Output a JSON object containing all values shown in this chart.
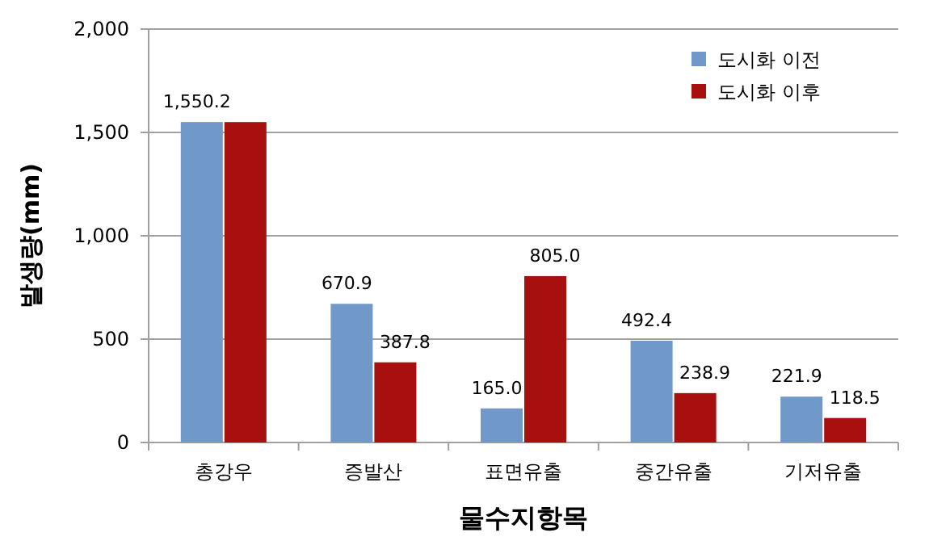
{
  "chart_data": {
    "type": "bar",
    "xlabel": "물수지항목",
    "ylabel": "발생량(mm)",
    "categories": [
      "총강우",
      "증발산",
      "표면유출",
      "중간유출",
      "기저유출"
    ],
    "series": [
      {
        "name": "도시화 이전",
        "color": "#7099c9",
        "values": [
          1550.2,
          670.9,
          165.0,
          492.4,
          221.9
        ],
        "value_labels": [
          "1,550.2",
          "670.9",
          "165.0",
          "492.4",
          "221.9"
        ]
      },
      {
        "name": "도시화 이후",
        "color": "#a8100f",
        "values": [
          1550,
          387.8,
          805.0,
          238.9,
          118.5
        ],
        "value_labels": [
          null,
          "387.8",
          "805.0",
          "238.9",
          "118.5"
        ]
      }
    ],
    "ylim": [
      0,
      2000
    ],
    "yticks": [
      {
        "value": 0,
        "label": "0"
      },
      {
        "value": 500,
        "label": "500"
      },
      {
        "value": 1000,
        "label": "1,000"
      },
      {
        "value": 1500,
        "label": "1,500"
      },
      {
        "value": 2000,
        "label": "2,000"
      }
    ],
    "grid": "y",
    "legend": "top right"
  }
}
